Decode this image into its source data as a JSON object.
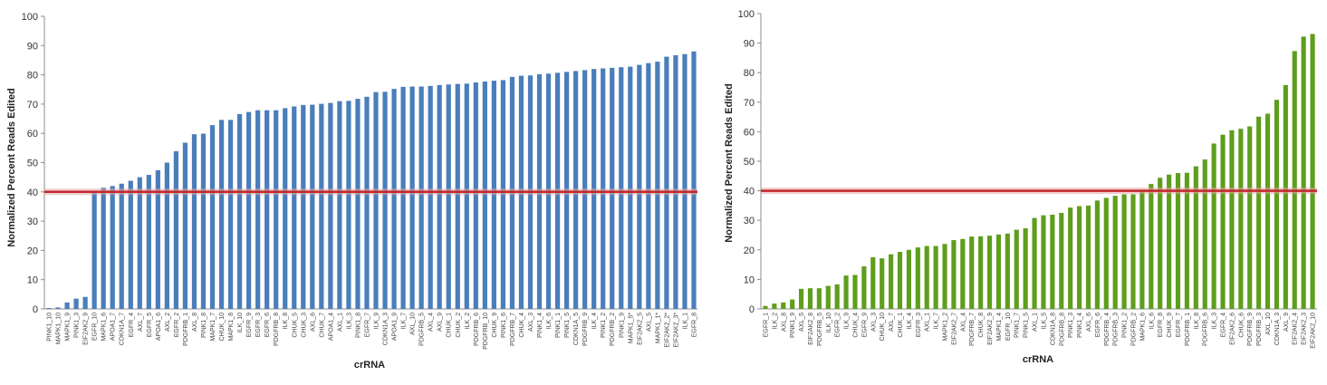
{
  "chart_data": [
    {
      "type": "bar",
      "color": "#4a7ebb",
      "ylabel": "Normalized Percent Reads Edited",
      "xlabel": "crRNA",
      "ylim": [
        0,
        100
      ],
      "yticks": [
        0,
        10,
        20,
        30,
        40,
        50,
        60,
        70,
        80,
        90,
        100
      ],
      "grid": false,
      "reference_line": {
        "value": 40,
        "color": "#c0282d"
      },
      "categories": [
        "PINK1_10",
        "MAPK1_10",
        "MAPK1_9",
        "PINK1_3",
        "EIF2AK2_9",
        "EGFR_10",
        "MAPK1_6",
        "APOA1_7",
        "CDKN1A_7",
        "EGFR_4",
        "AXL_7",
        "EGFR_5",
        "APOA1_6",
        "AXL_2",
        "EGFR_2",
        "PDGFRB_1",
        "AXL_8",
        "PINK1_8",
        "MAPK1_7",
        "CHUK_10",
        "MAPK1_8",
        "ILK_10",
        "EGFR_9",
        "EGFR_3",
        "EGFR_6",
        "PDGFRB_8",
        "ILK_8",
        "CHUK_5",
        "CHUK_3",
        "AXL_6",
        "CHUK_7",
        "APOA1_4",
        "AXL_1",
        "ILK_3",
        "PINK1_8",
        "EGFR_7",
        "ILK_9",
        "CDKN1A_3",
        "APOA1_9",
        "ILK_7",
        "AXL_10",
        "PDGFRB_5",
        "AXL_4",
        "AXL_9",
        "CHUK_1",
        "CHUK_2",
        "ILK_2",
        "PDGFRB_6",
        "PDGFRB_10",
        "CHUK_9",
        "PINK1_6",
        "PDGFRB_7",
        "CHUK_4",
        "AXL_3",
        "PINK1_4",
        "ILK_6",
        "PINK1_1",
        "PINK1_5",
        "CDKN1A_5",
        "PDGFRB_9",
        "ILK_4",
        "PINK1_2",
        "PDGFRB_2",
        "PINK1_9",
        "MAPK1_5*",
        "EIF2AK2_5",
        "AXL_5",
        "MAPK1_1*",
        "EIF2AK2_2*",
        "EIF2AK2_3*",
        "ILK_1",
        "EGFR_8"
      ],
      "values": [
        0.3,
        0.5,
        2.2,
        3.5,
        4.1,
        40.2,
        41.4,
        42.0,
        42.8,
        43.8,
        45.0,
        45.8,
        47.4,
        50.0,
        53.9,
        56.8,
        59.7,
        59.9,
        62.8,
        64.6,
        64.6,
        66.6,
        67.3,
        67.9,
        67.9,
        67.9,
        68.6,
        69.2,
        69.7,
        69.8,
        70.1,
        70.4,
        71.0,
        71.1,
        71.8,
        72.5,
        74.1,
        74.2,
        75.2,
        75.9,
        76.0,
        76.0,
        76.2,
        76.5,
        76.7,
        76.9,
        77.0,
        77.4,
        77.7,
        78.0,
        78.2,
        79.3,
        79.7,
        79.8,
        80.2,
        80.4,
        80.7,
        81.0,
        81.3,
        81.6,
        82.0,
        82.2,
        82.4,
        82.6,
        82.8,
        83.4,
        84.0,
        84.5,
        86.2,
        86.7,
        87.1,
        88.0
      ]
    },
    {
      "type": "bar",
      "color": "#5e9e1c",
      "ylabel": "Normalized Percent Reads Edited",
      "xlabel": "crRNA",
      "ylim": [
        0,
        100
      ],
      "yticks": [
        0,
        10,
        20,
        30,
        40,
        50,
        60,
        70,
        80,
        90,
        100
      ],
      "grid": false,
      "reference_line": {
        "value": 40,
        "color": "#c0282d"
      },
      "categories": [
        "EGFR_1",
        "ILK_2",
        "AXL_8",
        "PINK1_9",
        "AXL_5",
        "EIF2AK2_8",
        "PDGFRB_5",
        "ILK_10",
        "EGFR_2",
        "ILK_9",
        "CHUK_4",
        "EGFR_9",
        "AXL_3",
        "CHUK_10",
        "AXL_7",
        "CHUK_1",
        "ILK_4",
        "EGFR_3",
        "AXL_1",
        "ILK_7",
        "MAPK1_2",
        "EIF2AK2_7",
        "AXL_4",
        "PDGFRB_7",
        "CHUK_8",
        "EIF2AK2_9",
        "MAPK1_4",
        "EGFR_10",
        "PINK1_7",
        "PINK1_5",
        "AXL_1",
        "ILK_5",
        "CDKN1A_8",
        "PDGFRB_8",
        "PINK1_3",
        "PINK1_4",
        "AXL_6",
        "EGFR_6",
        "PDGFRB_4",
        "PDGFRB_3",
        "PINK1_2",
        "PDGFRB_2",
        "MAPK1_6",
        "ILK_6",
        "EGFR_8",
        "CHUK_9",
        "EGFR_7",
        "PDGFRB_1",
        "ILK_8",
        "PDGFRB_6",
        "ILK_3",
        "EGFR_4",
        "EIF2AK2_6",
        "CHUK_6",
        "PDGFRB_9",
        "PDGFRB_3",
        "AXL_10",
        "CDKN1A_3",
        "AXL_9",
        "EIF2AK2_4",
        "EIF2AK2_3",
        "EIF2AK2_10"
      ],
      "values": [
        1.0,
        1.8,
        2.2,
        3.2,
        6.8,
        7.0,
        7.0,
        7.8,
        8.3,
        11.3,
        11.5,
        14.4,
        17.5,
        17.1,
        18.5,
        19.3,
        20.0,
        20.8,
        21.3,
        21.3,
        22.0,
        23.3,
        23.7,
        24.5,
        24.6,
        24.8,
        25.2,
        25.5,
        26.8,
        27.3,
        30.8,
        31.7,
        31.9,
        32.5,
        34.3,
        34.8,
        35.0,
        36.7,
        37.6,
        38.3,
        38.8,
        38.8,
        40.0,
        42.3,
        44.4,
        45.5,
        46.0,
        46.1,
        48.3,
        50.6,
        56.0,
        59.0,
        60.5,
        61.0,
        61.8,
        65.1,
        66.1,
        70.8,
        75.8,
        87.3,
        92.2,
        93.1
      ]
    }
  ]
}
